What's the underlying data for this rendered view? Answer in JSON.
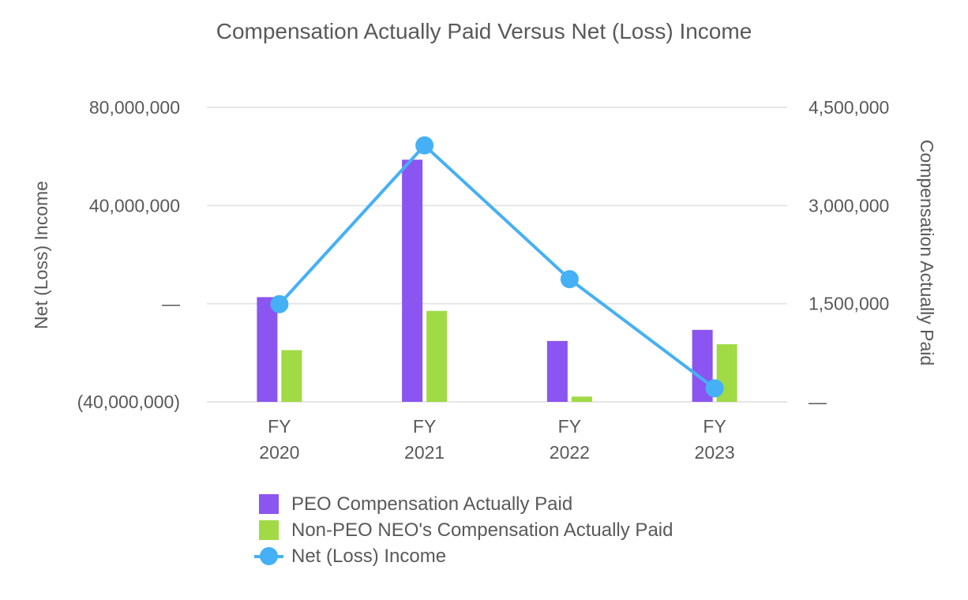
{
  "colors": {
    "peo": "#8a55f0",
    "non_peo": "#a0da45",
    "net_income": "#45b0f5",
    "grid": "#e6e6e6",
    "text": "#595959"
  },
  "chart_data": {
    "type": "bar",
    "title": "Compensation Actually Paid Versus Net (Loss) Income",
    "categories": [
      [
        "FY",
        "2020"
      ],
      [
        "FY",
        "2021"
      ],
      [
        "FY",
        "2022"
      ],
      [
        "FY",
        "2023"
      ]
    ],
    "left_axis": {
      "label": "Net (Loss) Income",
      "ylim": [
        -40000000,
        80000000
      ],
      "ticks": [
        -40000000,
        0,
        40000000,
        80000000
      ],
      "tick_labels": [
        "(40,000,000)",
        "—",
        "40,000,000",
        "80,000,000"
      ]
    },
    "right_axis": {
      "label": "Compensation Actually Paid",
      "ylim": [
        0,
        4500000
      ],
      "ticks": [
        0,
        1500000,
        3000000,
        4500000
      ],
      "tick_labels": [
        "—",
        "1,500,000",
        "3,000,000",
        "4,500,000"
      ]
    },
    "series": [
      {
        "name": "PEO Compensation Actually Paid",
        "type": "bar",
        "axis": "right",
        "values": [
          1600000,
          3700000,
          930000,
          1100000
        ]
      },
      {
        "name": "Non-PEO NEO's Compensation Actually Paid",
        "type": "bar",
        "axis": "right",
        "values": [
          790000,
          1390000,
          80000,
          880000
        ]
      },
      {
        "name": "Net (Loss) Income",
        "type": "line",
        "axis": "left",
        "values": -200000,
        "values_list": [
          -200000,
          64500000,
          10000000,
          -34500000
        ]
      }
    ],
    "grid": true,
    "legend_position": "bottom"
  }
}
